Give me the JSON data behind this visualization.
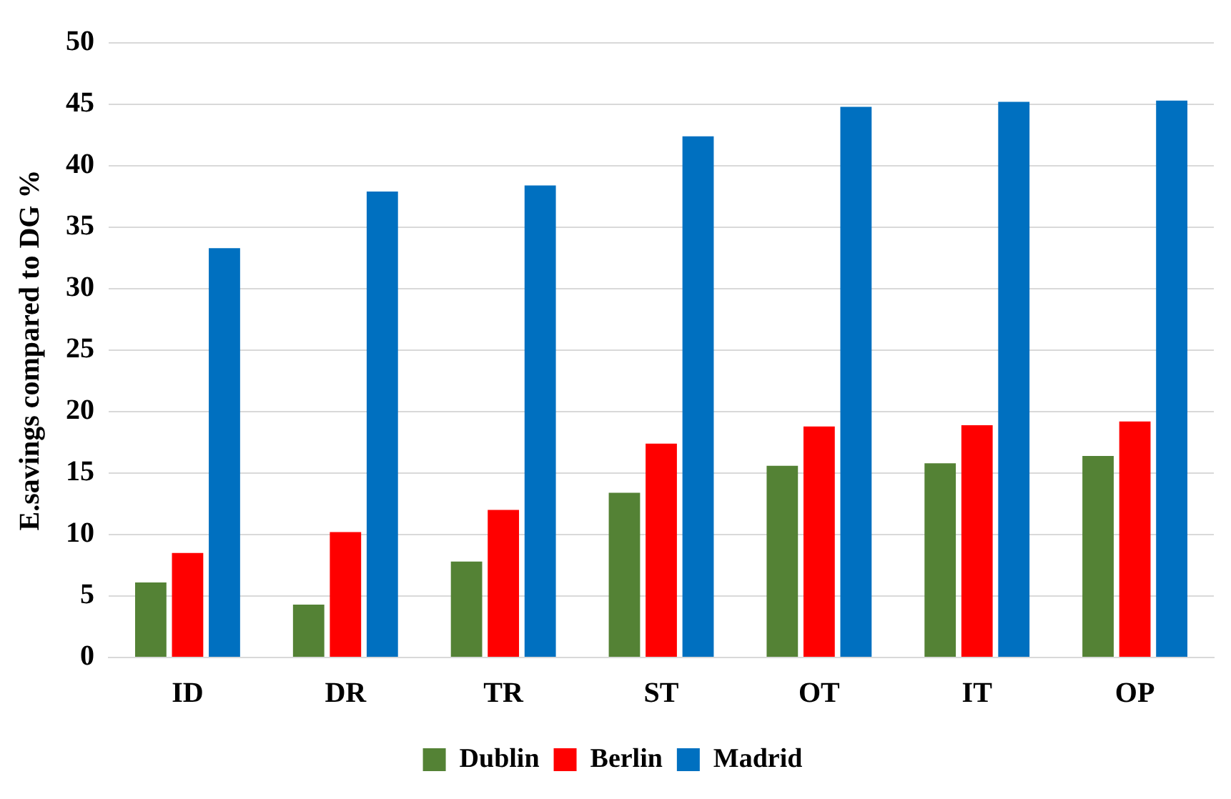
{
  "chart_data": {
    "type": "bar",
    "ylabel": "E.savings compared to DG %",
    "categories": [
      "ID",
      "DR",
      "TR",
      "ST",
      "OT",
      "IT",
      "OP"
    ],
    "series": [
      {
        "name": "Dublin",
        "color": "#548235",
        "values": [
          6.1,
          4.3,
          7.8,
          13.4,
          15.6,
          15.8,
          16.4
        ]
      },
      {
        "name": "Berlin",
        "color": "#ff0000",
        "values": [
          8.5,
          10.2,
          12.0,
          17.4,
          18.8,
          18.9,
          19.2
        ]
      },
      {
        "name": "Madrid",
        "color": "#0070c0",
        "values": [
          33.3,
          37.9,
          38.4,
          42.4,
          44.8,
          45.2,
          45.3
        ]
      }
    ],
    "ylim": [
      0,
      50
    ],
    "yticks": [
      0,
      5,
      10,
      15,
      20,
      25,
      30,
      35,
      40,
      45,
      50
    ],
    "grid": "y",
    "legend": "bottom"
  }
}
